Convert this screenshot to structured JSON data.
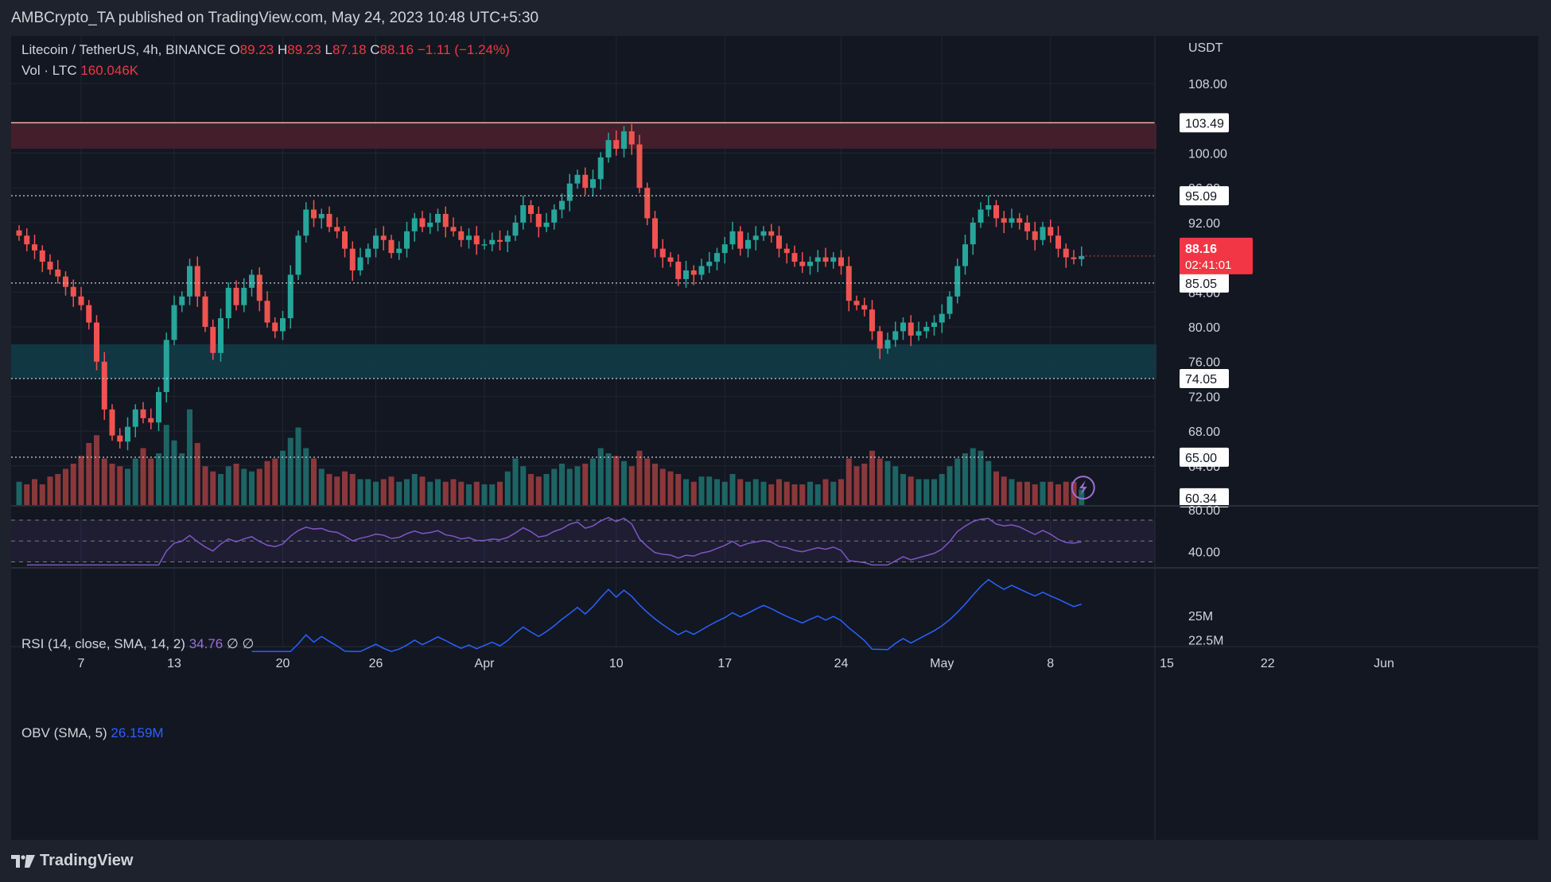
{
  "header": {
    "publisher": "AMBCrypto_TA published on TradingView.com, May 24, 2023 10:48 UTC+5:30"
  },
  "legend": {
    "symbol": "Litecoin / TetherUS, 4h, BINANCE",
    "o_label": "O",
    "o_value": "89.23",
    "h_label": "H",
    "h_value": "89.23",
    "l_label": "L",
    "l_value": "87.18",
    "c_label": "C",
    "c_value": "88.16",
    "change": "−1.11 (−1.24%)",
    "vol_label": "Vol · LTC",
    "vol_value": "160.046K",
    "rsi_label": "RSI (14, close, SMA, 14, 2)",
    "rsi_value": "34.76",
    "rsi_extra": "∅ ∅",
    "obv_label": "OBV (SMA, 5)",
    "obv_value": "26.159M"
  },
  "footer": {
    "brand": "TradingView"
  },
  "colors": {
    "up": "#26a69a",
    "down": "#ef5350",
    "rsi": "#7e57c2",
    "obv": "#2962ff",
    "resistance_zone": "#4a1f2b",
    "support_zone": "#123b47",
    "price_tag": "#f23645"
  },
  "chart_data": {
    "type": "candlestick",
    "currency": "USDT",
    "ylim": [
      59.5,
      113.5
    ],
    "price_ticks": [
      "108.00",
      "100.00",
      "96.00",
      "92.00",
      "84.00",
      "80.00",
      "76.00",
      "72.00",
      "68.00",
      "64.00"
    ],
    "x_ticks": [
      "7",
      "13",
      "20",
      "26",
      "Apr",
      "10",
      "17",
      "24",
      "May",
      "8",
      "15",
      "22",
      "Jun"
    ],
    "x_tick_index": [
      8,
      20,
      34,
      46,
      60,
      77,
      91,
      106,
      119,
      133,
      148,
      161,
      176
    ],
    "last_price": "88.16",
    "countdown": "02:41:01",
    "levels": [
      {
        "label": "103.49",
        "value": 103.49,
        "style": "solid"
      },
      {
        "label": "95.09",
        "value": 95.09,
        "style": "dotted"
      },
      {
        "label": "85.05",
        "value": 85.05,
        "style": "dotted"
      },
      {
        "label": "74.05",
        "value": 74.05,
        "style": "dotted"
      },
      {
        "label": "65.00",
        "value": 65.0,
        "style": "dotted"
      },
      {
        "label": "60.34",
        "value": 60.34,
        "style": "tag"
      }
    ],
    "zones": [
      {
        "name": "resistance",
        "top": 103.4,
        "bottom": 100.5
      },
      {
        "name": "support",
        "top": 78.0,
        "bottom": 74.05
      }
    ],
    "close": [
      90.5,
      89.5,
      88.8,
      87.5,
      86.6,
      85.8,
      84.6,
      83.5,
      82.5,
      80.5,
      76.0,
      70.5,
      67.5,
      66.8,
      68.5,
      70.5,
      69.5,
      69.0,
      72.5,
      78.5,
      82.5,
      83.5,
      87.0,
      83.5,
      80.0,
      77.0,
      81.0,
      84.5,
      82.5,
      84.5,
      86.0,
      83.0,
      80.5,
      79.5,
      81.0,
      86.0,
      90.5,
      93.5,
      92.5,
      93.0,
      91.5,
      91.0,
      89.0,
      86.5,
      88.0,
      89.0,
      90.5,
      90.0,
      88.5,
      89.0,
      91.0,
      92.5,
      91.5,
      92.0,
      93.0,
      91.5,
      91.0,
      90.0,
      90.5,
      89.5,
      89.5,
      90.0,
      89.8,
      90.5,
      92.0,
      94.0,
      93.0,
      91.5,
      92.0,
      93.5,
      94.5,
      96.5,
      97.5,
      96.0,
      97.0,
      99.5,
      101.5,
      100.5,
      102.5,
      101.0,
      96.0,
      92.5,
      89.0,
      88.0,
      87.5,
      85.5,
      86.5,
      86.0,
      87.0,
      87.5,
      88.5,
      89.5,
      91.0,
      89.0,
      90.0,
      90.5,
      91.0,
      90.5,
      89.0,
      88.5,
      87.5,
      87.0,
      87.5,
      88.0,
      87.5,
      88.0,
      87.0,
      83.0,
      82.5,
      82.0,
      79.5,
      77.5,
      78.5,
      79.5,
      80.5,
      79.0,
      79.5,
      80.0,
      80.5,
      81.5,
      83.5,
      87.0,
      89.5,
      92.0,
      93.5,
      94.0,
      92.5,
      92.0,
      92.5,
      92.0,
      91.0,
      90.0,
      91.5,
      90.5,
      89.0,
      88.0,
      87.8,
      88.16
    ],
    "volume": [
      0.9,
      0.8,
      1.0,
      0.8,
      1.1,
      1.2,
      1.4,
      1.6,
      1.9,
      2.4,
      2.7,
      1.8,
      1.6,
      1.5,
      1.4,
      1.8,
      2.2,
      1.8,
      2.0,
      3.1,
      2.5,
      2.0,
      3.7,
      2.4,
      1.5,
      1.3,
      1.2,
      1.5,
      1.6,
      1.4,
      1.3,
      1.4,
      1.7,
      1.8,
      2.1,
      2.6,
      3.0,
      2.2,
      1.8,
      1.4,
      1.2,
      1.1,
      1.3,
      1.2,
      1.0,
      1.0,
      0.9,
      1.0,
      1.1,
      0.9,
      1.0,
      1.2,
      1.1,
      0.9,
      1.0,
      0.9,
      1.0,
      0.9,
      0.8,
      0.9,
      0.8,
      0.8,
      0.9,
      1.3,
      1.8,
      1.5,
      1.2,
      1.1,
      1.2,
      1.4,
      1.6,
      1.4,
      1.5,
      1.6,
      1.8,
      2.2,
      2.0,
      1.9,
      1.7,
      1.5,
      2.1,
      1.8,
      1.6,
      1.4,
      1.3,
      1.2,
      1.0,
      0.9,
      1.1,
      1.1,
      1.0,
      0.9,
      1.2,
      1.0,
      0.9,
      1.0,
      0.9,
      0.8,
      1.0,
      0.9,
      0.8,
      0.8,
      0.9,
      0.8,
      1.0,
      0.9,
      1.0,
      1.8,
      1.5,
      1.6,
      2.1,
      1.8,
      1.7,
      1.5,
      1.2,
      1.1,
      1.0,
      1.0,
      1.0,
      1.2,
      1.5,
      1.8,
      2.0,
      2.2,
      2.1,
      1.7,
      1.3,
      1.1,
      1.0,
      0.9,
      0.9,
      0.8,
      0.9,
      0.9,
      0.8,
      0.9,
      0.9,
      0.6
    ],
    "rsi_levels": {
      "upper": 70,
      "middle": 50,
      "lower": 30
    },
    "rsi_ticks": [
      "80.00",
      "40.00"
    ],
    "rsi_ylim": [
      25,
      83
    ],
    "obv_ticks": [
      "25M",
      "22.5M"
    ],
    "obv_ylim": [
      21.8,
      29.8
    ]
  }
}
